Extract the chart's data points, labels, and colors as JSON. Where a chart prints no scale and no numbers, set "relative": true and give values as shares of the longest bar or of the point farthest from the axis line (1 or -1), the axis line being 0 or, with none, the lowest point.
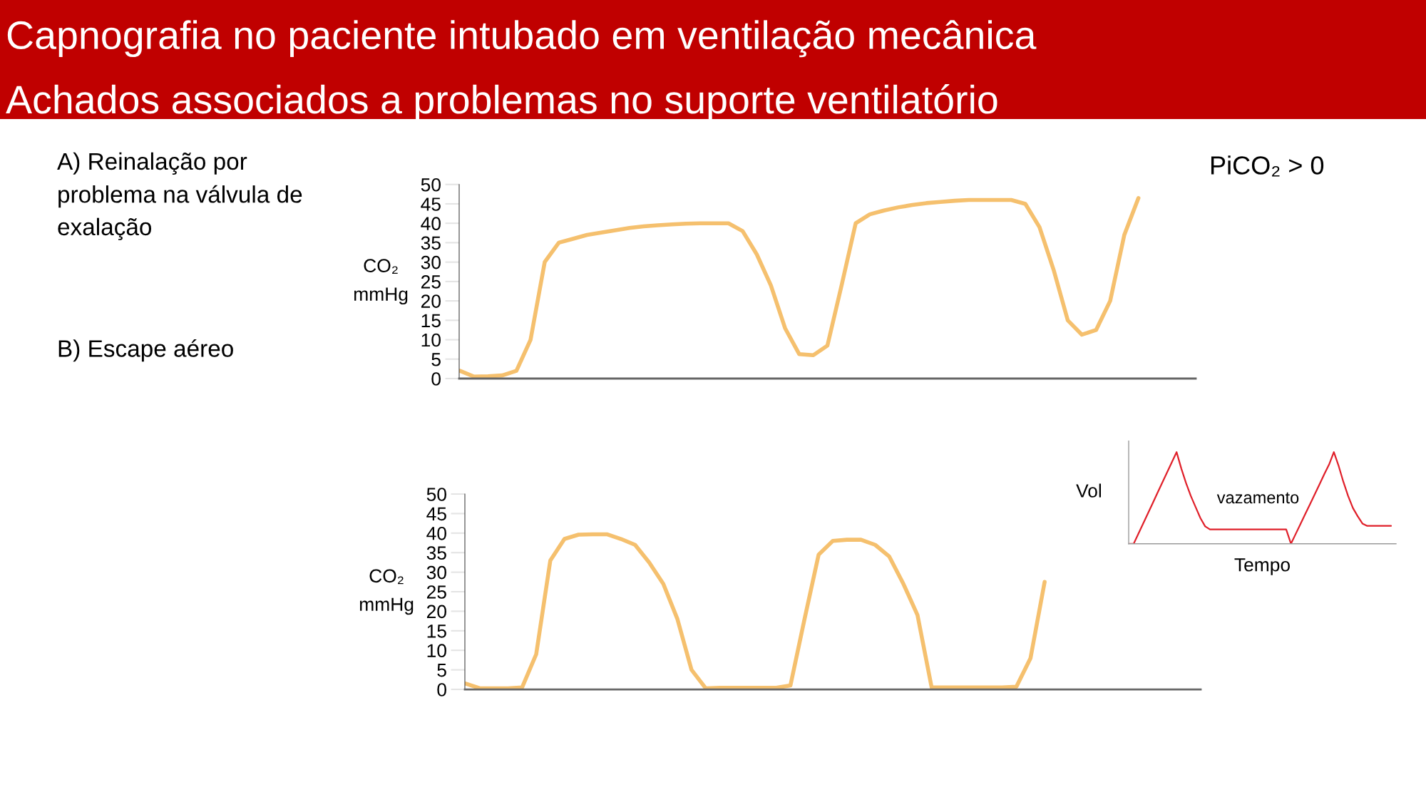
{
  "chart_data": [
    {
      "type": "line",
      "title": "Capnografia no paciente intubado em ventilação mecânica",
      "subtitle": "Achados associados a problemas no suporte ventilatório",
      "ylabel": "CO₂\nmmHg",
      "annotations": [
        "A) Reinalação por\nproblema na válvula de\nexalação",
        "PiCO₂ > 0"
      ],
      "categories": [
        null,
        null,
        null,
        null,
        null,
        null,
        null,
        null,
        null,
        null,
        null,
        null,
        null,
        null,
        null,
        null,
        null,
        null,
        null,
        null,
        null,
        null,
        null,
        null,
        null,
        null,
        null,
        null,
        null,
        null,
        null,
        null,
        null,
        null,
        null,
        null,
        null,
        null,
        null,
        null,
        null,
        null,
        null,
        null,
        null,
        null,
        null,
        null,
        null,
        null,
        null,
        null,
        null
      ],
      "series": [
        {
          "color": "#f5c06e",
          "values": [
            2,
            0.5,
            0.6,
            0.8,
            2,
            10,
            30,
            35,
            36,
            37,
            37.6,
            38.2,
            38.8,
            39.2,
            39.5,
            39.7,
            39.9,
            40,
            40,
            40,
            38,
            32,
            24,
            13,
            6.3,
            6,
            8.5,
            24,
            40,
            42.3,
            43.3,
            44.1,
            44.7,
            45.2,
            45.5,
            45.8,
            46,
            46,
            46,
            46,
            45,
            39,
            28,
            15,
            11.3,
            12.5,
            20,
            37,
            46.5,
            null,
            null,
            null,
            null
          ]
        }
      ],
      "ylim": [
        0,
        50
      ],
      "yticks": [
        0,
        5,
        10,
        15,
        20,
        25,
        30,
        35,
        40,
        45,
        50
      ],
      "tick_labels": "y",
      "line_style": "solid"
    },
    {
      "type": "line",
      "ylabel": "CO₂\nmmHg",
      "annotations": [
        "B) Escape aéreo"
      ],
      "categories": [
        null,
        null,
        null,
        null,
        null,
        null,
        null,
        null,
        null,
        null,
        null,
        null,
        null,
        null,
        null,
        null,
        null,
        null,
        null,
        null,
        null,
        null,
        null,
        null,
        null,
        null,
        null,
        null,
        null,
        null,
        null,
        null,
        null,
        null,
        null,
        null,
        null,
        null,
        null,
        null,
        null,
        null,
        null,
        null,
        null,
        null,
        null,
        null,
        null,
        null,
        null,
        null,
        null
      ],
      "series": [
        {
          "color": "#f5c06e",
          "values": [
            1.5,
            0.3,
            0.3,
            0.3,
            0.5,
            9,
            33,
            38.5,
            39.6,
            39.7,
            39.7,
            38.5,
            37,
            32.5,
            27,
            18,
            5,
            0.3,
            0.4,
            0.4,
            0.4,
            0.4,
            0.4,
            1,
            18,
            34.5,
            38,
            38.3,
            38.3,
            37,
            34,
            27,
            19,
            0.5,
            0.5,
            0.5,
            0.5,
            0.5,
            0.5,
            0.7,
            8,
            27.5,
            null,
            null,
            null,
            null,
            null,
            null,
            null,
            null,
            null,
            null,
            null
          ]
        }
      ],
      "ylim": [
        0,
        50
      ],
      "yticks": [
        0,
        5,
        10,
        15,
        20,
        25,
        30,
        35,
        40,
        45,
        50
      ],
      "tick_labels": "y",
      "line_style": "solid"
    },
    {
      "type": "line",
      "relative": true,
      "ylabel": "Vol",
      "xlabel": "Tempo",
      "annotations": [
        "vazamento"
      ],
      "categories": [
        null,
        null,
        null,
        null,
        null,
        null,
        null,
        null,
        null,
        null,
        null,
        null,
        null,
        null,
        null,
        null,
        null,
        null,
        null,
        null,
        null,
        null,
        null,
        null,
        null,
        null,
        null,
        null,
        null,
        null,
        null,
        null,
        null,
        null,
        null,
        null,
        null,
        null,
        null,
        null,
        null,
        null,
        null,
        null,
        null,
        null,
        null,
        null,
        null,
        null,
        null,
        null,
        null,
        null,
        null,
        null,
        null
      ],
      "series": [
        {
          "color": "#e0202a",
          "values": [
            0,
            0,
            0.111,
            0.222,
            0.333,
            0.444,
            0.556,
            0.667,
            0.778,
            0.889,
            1,
            0.82,
            0.66,
            0.52,
            0.4,
            0.28,
            0.19,
            0.156,
            0.156,
            0.156,
            0.156,
            0.156,
            0.156,
            0.156,
            0.156,
            0.156,
            0.156,
            0.156,
            0.156,
            0.156,
            0.156,
            0.156,
            0.156,
            0.156,
            0,
            0.108,
            0.216,
            0.324,
            0.432,
            0.54,
            0.65,
            0.76,
            0.865,
            1,
            0.85,
            0.675,
            0.52,
            0.39,
            0.3,
            0.22,
            0.195,
            0.195,
            0.195,
            0.195,
            0.195,
            0.195,
            null
          ]
        }
      ],
      "tick_labels": false,
      "line_style": "solid"
    }
  ]
}
